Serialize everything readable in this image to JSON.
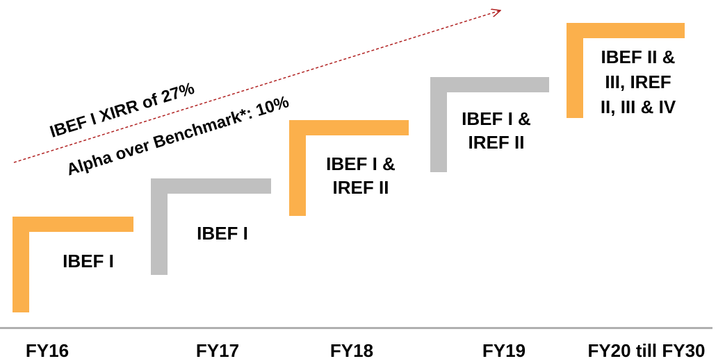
{
  "annotations": {
    "xirr": "IBEF I XIRR of 27%",
    "alpha": "Alpha over Benchmark*: 10%"
  },
  "steps": [
    {
      "lines": [
        "IBEF I"
      ],
      "year": "FY16"
    },
    {
      "lines": [
        "IBEF I"
      ],
      "year": "FY17"
    },
    {
      "lines": [
        "IBEF I &",
        "IREF II"
      ],
      "year": "FY18"
    },
    {
      "lines": [
        "IBEF I &",
        "IREF II"
      ],
      "year": "FY19"
    },
    {
      "lines": [
        "IBEF II &",
        "III, IREF",
        "II, III & IV"
      ],
      "year": "FY20 till FY30"
    }
  ]
}
